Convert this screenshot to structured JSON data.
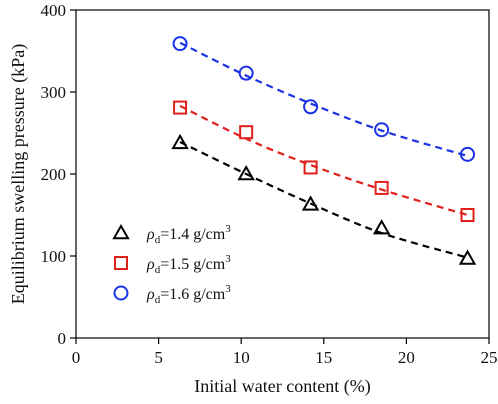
{
  "chart_data": {
    "type": "scatter",
    "title": "",
    "xlabel": "Initial water content (%)",
    "ylabel": "Equilibrium swelling pressure (kPa)",
    "xlim": [
      0,
      25
    ],
    "ylim": [
      0,
      400
    ],
    "xticks": [
      0,
      5,
      10,
      15,
      20,
      25
    ],
    "yticks": [
      0,
      100,
      200,
      300,
      400
    ],
    "grid": false,
    "legend_position": "lower-left",
    "series": [
      {
        "name": "ρd=1.4 g/cm3",
        "legend": {
          "symbol": "ρ",
          "subscript": "d",
          "text": "=1.4 g/cm",
          "superscript": "3"
        },
        "marker": "triangle",
        "color": "#000000",
        "points": [
          {
            "x": 6.3,
            "y": 238
          },
          {
            "x": 10.3,
            "y": 200
          },
          {
            "x": 14.2,
            "y": 163
          },
          {
            "x": 18.5,
            "y": 134
          },
          {
            "x": 23.7,
            "y": 97
          }
        ],
        "trend": [
          {
            "x": 6.3,
            "y": 239
          },
          {
            "x": 10.3,
            "y": 200
          },
          {
            "x": 14.2,
            "y": 164
          },
          {
            "x": 18.5,
            "y": 128
          },
          {
            "x": 23.7,
            "y": 98
          }
        ]
      },
      {
        "name": "ρd=1.5 g/cm3",
        "legend": {
          "symbol": "ρ",
          "subscript": "d",
          "text": "=1.5 g/cm",
          "superscript": "3"
        },
        "marker": "square",
        "color": "#e0201b",
        "points": [
          {
            "x": 6.3,
            "y": 281
          },
          {
            "x": 10.3,
            "y": 251
          },
          {
            "x": 14.2,
            "y": 208
          },
          {
            "x": 18.5,
            "y": 183
          },
          {
            "x": 23.7,
            "y": 150
          }
        ],
        "trend": [
          {
            "x": 6.3,
            "y": 283
          },
          {
            "x": 10.3,
            "y": 243
          },
          {
            "x": 14.2,
            "y": 211
          },
          {
            "x": 18.5,
            "y": 181
          },
          {
            "x": 23.7,
            "y": 150
          }
        ]
      },
      {
        "name": "ρd=1.6 g/cm3",
        "legend": {
          "symbol": "ρ",
          "subscript": "d",
          "text": "=1.6 g/cm",
          "superscript": "3"
        },
        "marker": "circle",
        "color": "#1a33e6",
        "points": [
          {
            "x": 6.3,
            "y": 359
          },
          {
            "x": 10.3,
            "y": 323
          },
          {
            "x": 14.2,
            "y": 282
          },
          {
            "x": 18.5,
            "y": 254
          },
          {
            "x": 23.7,
            "y": 224
          }
        ],
        "trend": [
          {
            "x": 6.3,
            "y": 360
          },
          {
            "x": 10.3,
            "y": 320
          },
          {
            "x": 14.2,
            "y": 286
          },
          {
            "x": 18.5,
            "y": 253
          },
          {
            "x": 23.7,
            "y": 222
          }
        ]
      }
    ]
  }
}
